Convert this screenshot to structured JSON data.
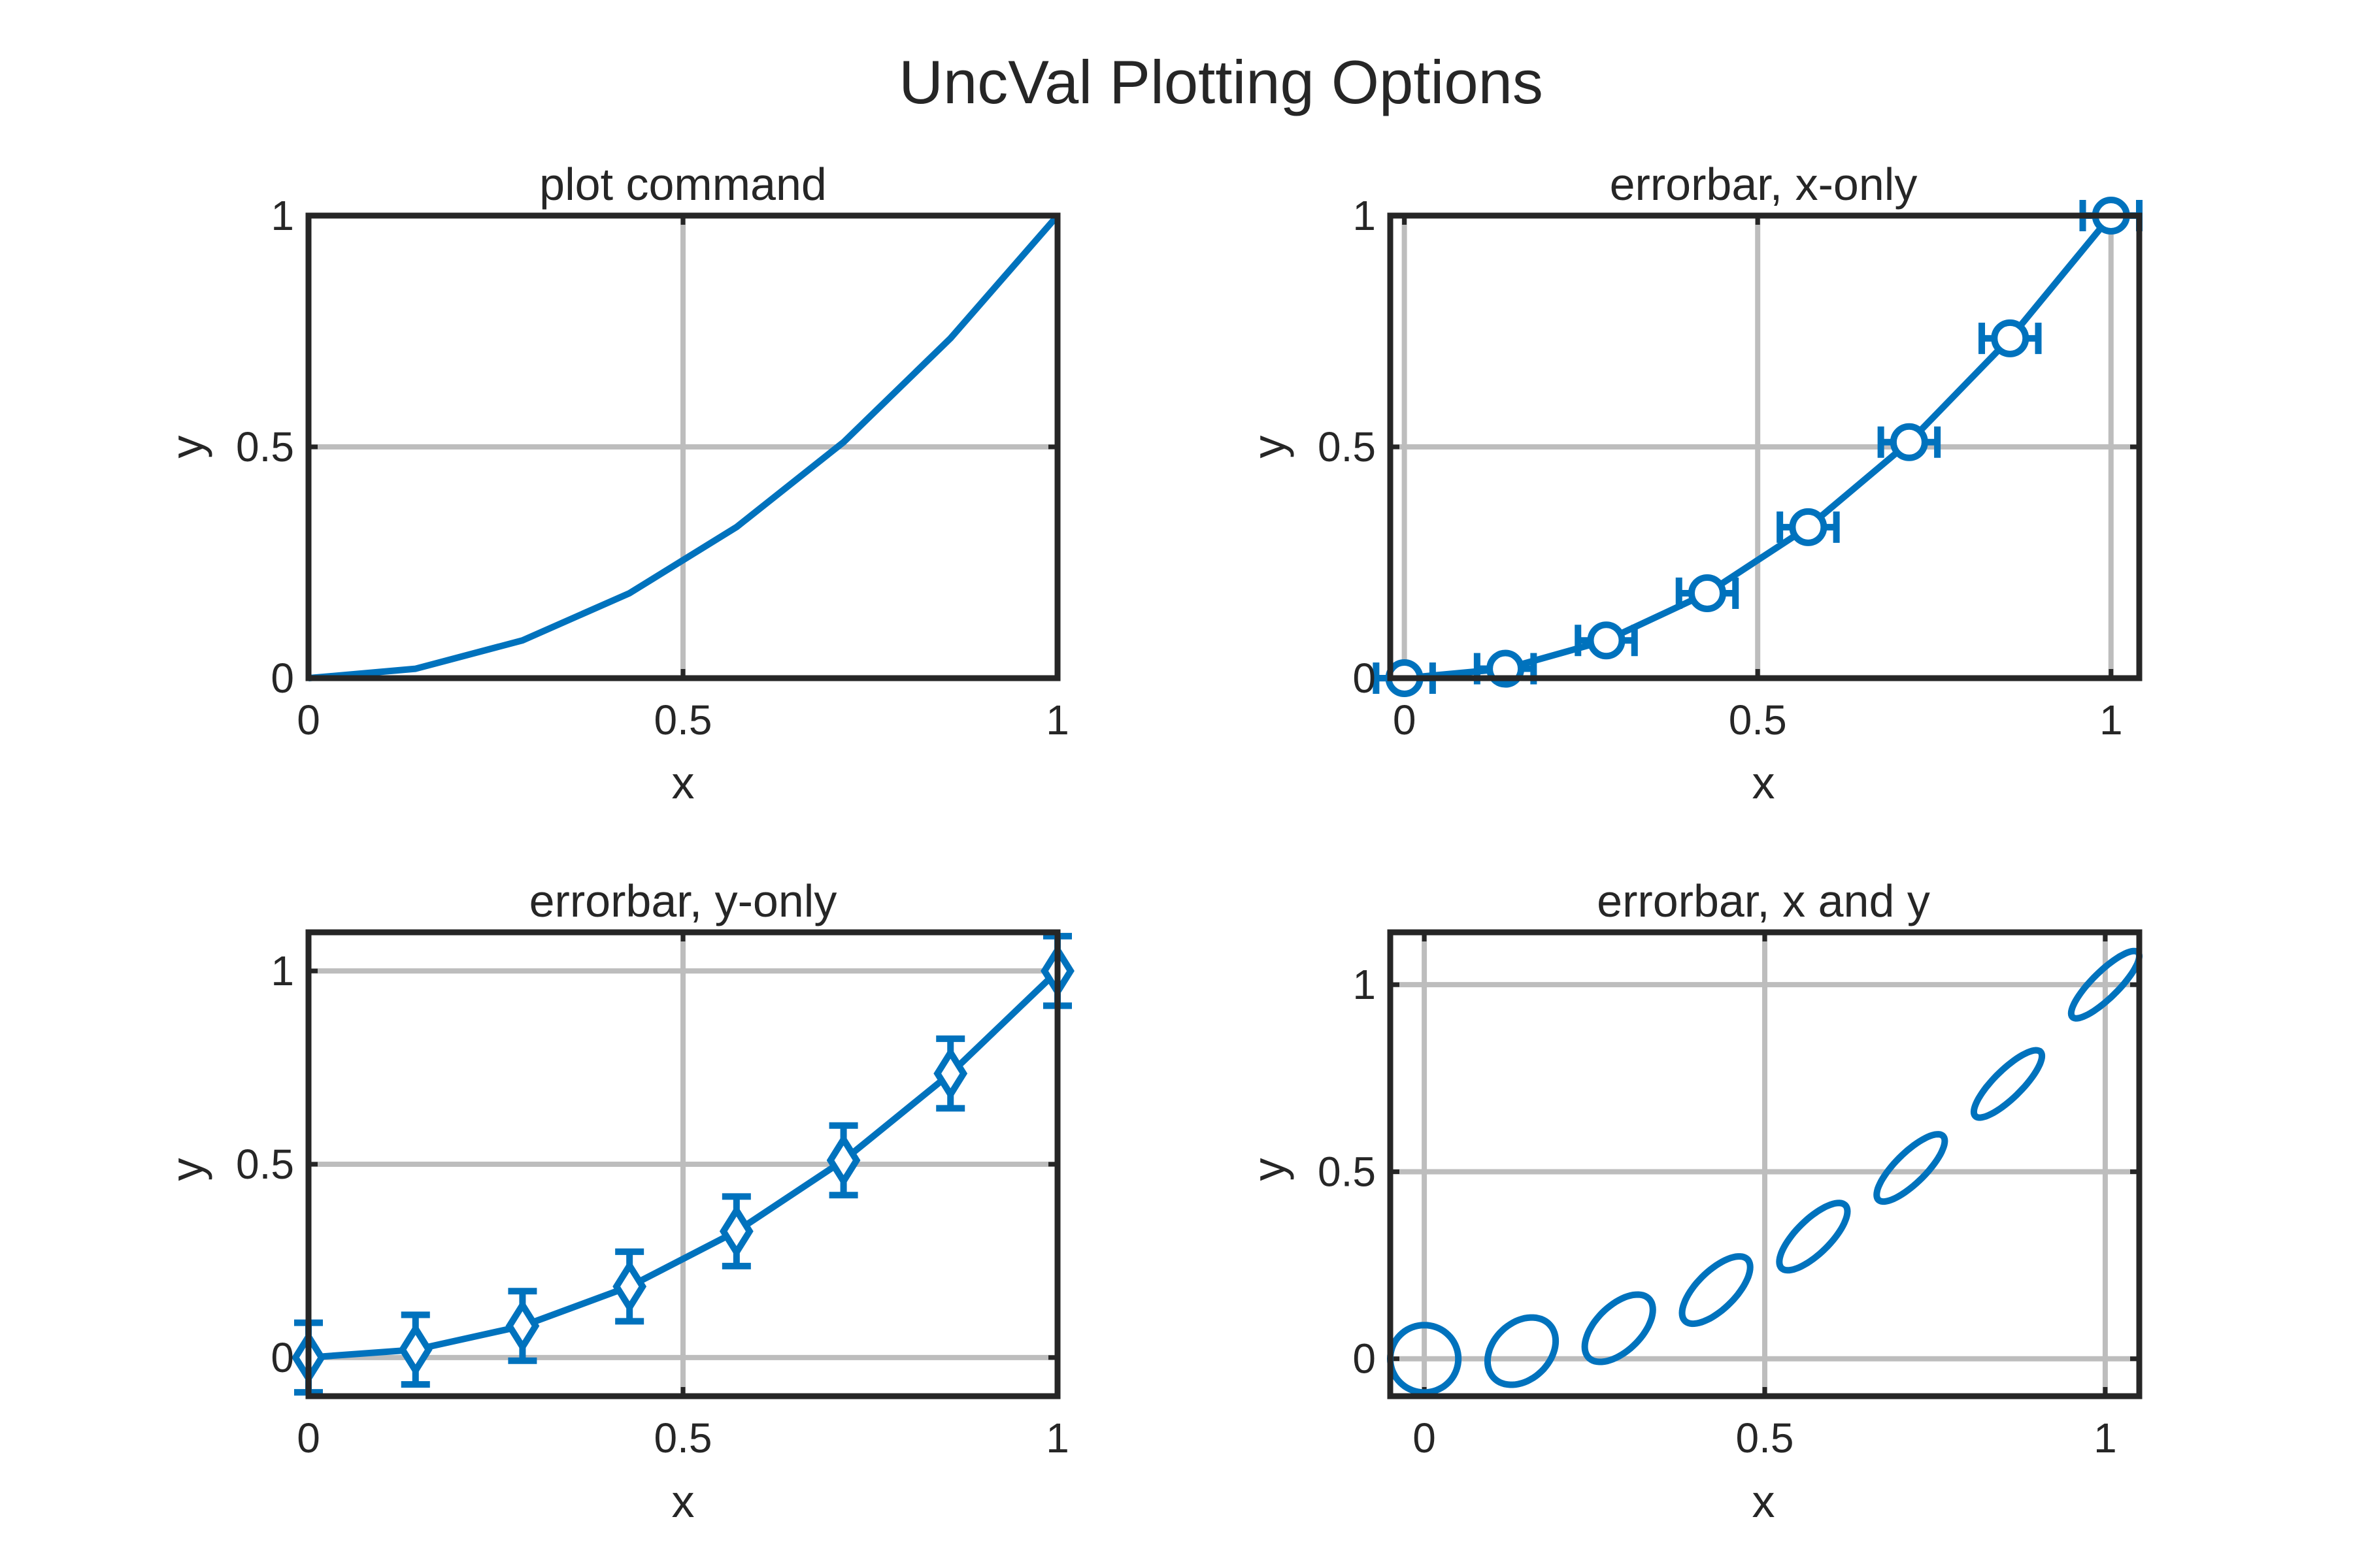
{
  "figure": {
    "title": "UncVal Plotting Options",
    "line_color": "#0072bd",
    "axis_color": "#262626",
    "grid_color": "#bdbdbd"
  },
  "chart_data": [
    {
      "type": "line",
      "title": "plot command",
      "xlabel": "x",
      "ylabel": "y",
      "xlim": [
        0,
        1
      ],
      "ylim": [
        0,
        1
      ],
      "xticks": [
        0,
        0.5,
        1
      ],
      "xtick_labels": [
        "0",
        "0.5",
        "1"
      ],
      "yticks": [
        0,
        0.5,
        1
      ],
      "ytick_labels": [
        "0",
        "0.5",
        "1"
      ],
      "grid": true,
      "errorbars": "none",
      "marker": "none",
      "x": [
        0,
        0.1429,
        0.2857,
        0.4286,
        0.5714,
        0.7143,
        0.8571,
        1
      ],
      "y": [
        0,
        0.0204,
        0.0816,
        0.1837,
        0.3265,
        0.5102,
        0.7347,
        1
      ]
    },
    {
      "type": "line",
      "title": "errorbar, x-only",
      "xlabel": "x",
      "ylabel": "y",
      "xlim": [
        -0.02,
        1.04
      ],
      "ylim": [
        0,
        1
      ],
      "xticks": [
        0,
        0.5,
        1
      ],
      "xtick_labels": [
        "0",
        "0.5",
        "1"
      ],
      "yticks": [
        0,
        0.5,
        1
      ],
      "ytick_labels": [
        "0",
        "0.5",
        "1"
      ],
      "grid": true,
      "errorbars": "x",
      "marker": "circle",
      "x": [
        0,
        0.1429,
        0.2857,
        0.4286,
        0.5714,
        0.7143,
        0.8571,
        1
      ],
      "y": [
        0,
        0.0204,
        0.0816,
        0.1837,
        0.3265,
        0.5102,
        0.7347,
        1
      ],
      "x_error": 0.04
    },
    {
      "type": "line",
      "title": "errorbar, y-only",
      "xlabel": "x",
      "ylabel": "y",
      "xlim": [
        0,
        1
      ],
      "ylim": [
        -0.1,
        1.1
      ],
      "xticks": [
        0,
        0.5,
        1
      ],
      "xtick_labels": [
        "0",
        "0.5",
        "1"
      ],
      "yticks": [
        0,
        0.5,
        1
      ],
      "ytick_labels": [
        "0",
        "0.5",
        "1"
      ],
      "grid": true,
      "errorbars": "y",
      "marker": "diamond",
      "x": [
        0,
        0.1429,
        0.2857,
        0.4286,
        0.5714,
        0.7143,
        0.8571,
        1
      ],
      "y": [
        0,
        0.0204,
        0.0816,
        0.1837,
        0.3265,
        0.5102,
        0.7347,
        1
      ],
      "y_error": 0.09
    },
    {
      "type": "scatter",
      "title": "errorbar, x and y",
      "xlabel": "x",
      "ylabel": "y",
      "xlim": [
        -0.05,
        1.05
      ],
      "ylim": [
        -0.1,
        1.14
      ],
      "xticks": [
        0,
        0.5,
        1
      ],
      "xtick_labels": [
        "0",
        "0.5",
        "1"
      ],
      "yticks": [
        0,
        0.5,
        1
      ],
      "ytick_labels": [
        "0",
        "0.5",
        "1"
      ],
      "grid": true,
      "errorbars": "ellipse",
      "marker": "none",
      "x": [
        0,
        0.1429,
        0.2857,
        0.4286,
        0.5714,
        0.7143,
        0.8571,
        1
      ],
      "y": [
        0,
        0.0204,
        0.0816,
        0.1837,
        0.3265,
        0.5102,
        0.7347,
        1
      ],
      "x_error": 0.05,
      "y_error": 0.09,
      "correlation": [
        0,
        0.3,
        0.55,
        0.68,
        0.75,
        0.8,
        0.83,
        0.85
      ]
    }
  ]
}
